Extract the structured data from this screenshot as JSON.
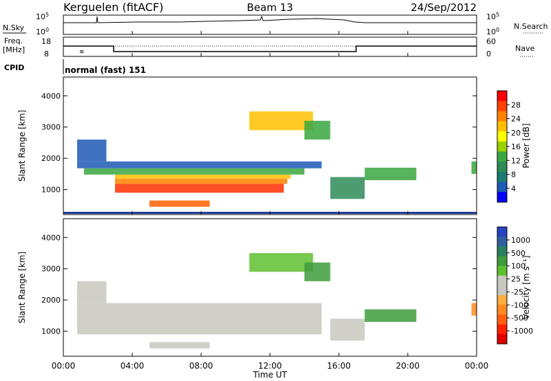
{
  "header": {
    "station": "Kerguelen (fitACF)",
    "beam": "Beam 13",
    "date": "24/Sep/2012"
  },
  "panels": {
    "nsky": {
      "label": "N.Sky",
      "top_tick": "10^5",
      "bottom_tick": "10^0",
      "right_label": "N.Search"
    },
    "freq": {
      "label_line1": "Freq.",
      "label_line2": "[MHz]",
      "left_top": "18",
      "left_bottom": "8",
      "right_top": "60",
      "right_bottom": "0",
      "right_label": "Nave"
    },
    "cpid": {
      "label": "CPID",
      "value": "normal (fast) 151"
    }
  },
  "power_colorbar": {
    "title": "Power [dB]",
    "ticks": [
      "28",
      "24",
      "20",
      "16",
      "12",
      "8",
      "4"
    ],
    "colors": [
      "#ff0000",
      "#ff4000",
      "#ff8000",
      "#ffbf00",
      "#ffff00",
      "#9ad000",
      "#3aa640",
      "#2e8b57",
      "#1e7a70",
      "#1d5bb5",
      "#0000ff"
    ]
  },
  "velocity_colorbar": {
    "title": "Velocity [m s⁻¹]",
    "ticks": [
      "1000",
      "500",
      "100",
      "25",
      "-25",
      "-100",
      "-500",
      "-1000"
    ],
    "colors": [
      "#2a42c0",
      "#2f5fa0",
      "#2a8060",
      "#3f9c3c",
      "#5fc030",
      "#c8c8c0",
      "#c8c8c0",
      "#ffae40",
      "#ff8a20",
      "#ff6010",
      "#ff2000",
      "#e00000"
    ]
  },
  "chart_data": {
    "type": "heatmap",
    "xlabel": "Time UT",
    "ylabel": "Slant Range [km]",
    "x_ticks": [
      "00:00",
      "04:00",
      "08:00",
      "12:00",
      "16:00",
      "20:00",
      "00:00"
    ],
    "x_range_hours": [
      0,
      24
    ],
    "y_ticks": [
      1000,
      2000,
      3000,
      4000
    ],
    "ylim": [
      200,
      4600
    ],
    "bands_power": [
      {
        "t0": 3.0,
        "t1": 12.8,
        "r0": 900,
        "r1": 1180,
        "color": "#ff3000"
      },
      {
        "t0": 3.0,
        "t1": 13.0,
        "r0": 1180,
        "r1": 1350,
        "color": "#ff8000"
      },
      {
        "t0": 3.0,
        "t1": 13.2,
        "r0": 1350,
        "r1": 1480,
        "color": "#ffc000"
      },
      {
        "t0": 1.2,
        "t1": 14.0,
        "r0": 1480,
        "r1": 1680,
        "color": "#3aa640"
      },
      {
        "t0": 0.8,
        "t1": 15.0,
        "r0": 1680,
        "r1": 1900,
        "color": "#1d5bb5"
      },
      {
        "t0": 0.8,
        "t1": 2.5,
        "r0": 1900,
        "r1": 2600,
        "color": "#1d5bb5"
      },
      {
        "t0": 5.0,
        "t1": 8.5,
        "r0": 450,
        "r1": 650,
        "color": "#ff6000"
      },
      {
        "t0": 10.8,
        "t1": 14.5,
        "r0": 2900,
        "r1": 3500,
        "color": "#ffc000"
      },
      {
        "t0": 14.0,
        "t1": 15.5,
        "r0": 2600,
        "r1": 3200,
        "color": "#3aa640"
      },
      {
        "t0": 15.5,
        "t1": 17.5,
        "r0": 700,
        "r1": 1400,
        "color": "#2e8b57"
      },
      {
        "t0": 17.5,
        "t1": 20.5,
        "r0": 1300,
        "r1": 1700,
        "color": "#3aa640"
      },
      {
        "t0": 23.7,
        "t1": 24.0,
        "r0": 1500,
        "r1": 1900,
        "color": "#3aa640"
      }
    ],
    "bands_velocity": [
      {
        "t0": 0.8,
        "t1": 15.0,
        "r0": 900,
        "r1": 1900,
        "color": "#c8c8c0"
      },
      {
        "t0": 0.8,
        "t1": 2.5,
        "r0": 1900,
        "r1": 2600,
        "color": "#c8c8c0"
      },
      {
        "t0": 5.0,
        "t1": 8.5,
        "r0": 450,
        "r1": 650,
        "color": "#c8c8c0"
      },
      {
        "t0": 10.8,
        "t1": 14.5,
        "r0": 2900,
        "r1": 3500,
        "color": "#5fc030"
      },
      {
        "t0": 14.0,
        "t1": 15.5,
        "r0": 2600,
        "r1": 3200,
        "color": "#3f9c3c"
      },
      {
        "t0": 15.5,
        "t1": 17.5,
        "r0": 700,
        "r1": 1400,
        "color": "#c8c8c0"
      },
      {
        "t0": 17.5,
        "t1": 20.5,
        "r0": 1300,
        "r1": 1700,
        "color": "#3f9c3c"
      },
      {
        "t0": 23.7,
        "t1": 24.0,
        "r0": 1500,
        "r1": 1900,
        "color": "#ff8a20"
      }
    ]
  }
}
